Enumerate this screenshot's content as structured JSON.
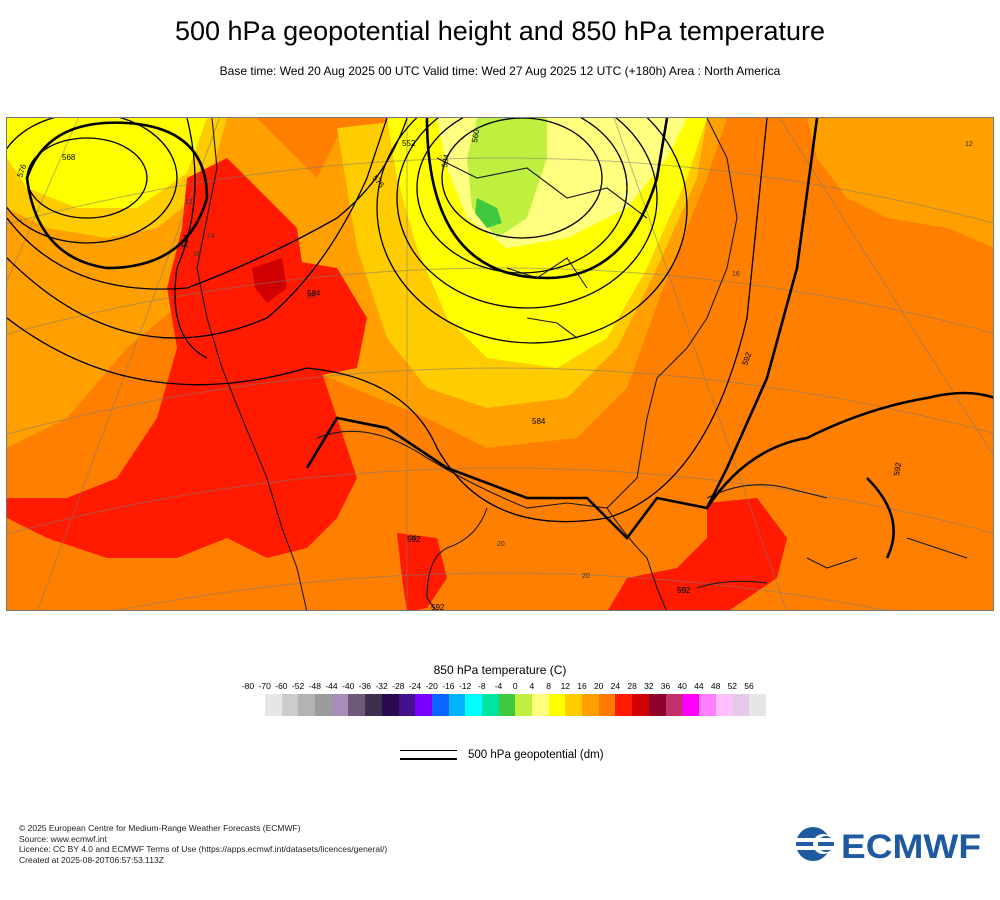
{
  "header": {
    "title": "500 hPa geopotential height and 850 hPa temperature",
    "subtitle": "Base time: Wed 20 Aug 2025 00 UTC Valid time: Wed 27 Aug 2025 12 UTC (+180h) Area : North America"
  },
  "map": {
    "area": "North America",
    "contour_labels": [
      "568",
      "576",
      "584",
      "584",
      "576",
      "584",
      "560",
      "552",
      "584",
      "592",
      "592",
      "592",
      "592",
      "592"
    ],
    "isotherm_labels": [
      "12",
      "12",
      "16",
      "16",
      "24",
      "20",
      "20",
      "20",
      "24",
      "24"
    ]
  },
  "temperature_legend": {
    "title": "850 hPa temperature (C)",
    "ticks": [
      "-80",
      "-70",
      "-60",
      "-52",
      "-48",
      "-44",
      "-40",
      "-36",
      "-32",
      "-28",
      "-24",
      "-20",
      "-16",
      "-12",
      "-8",
      "-4",
      "0",
      "4",
      "8",
      "12",
      "16",
      "20",
      "24",
      "28",
      "32",
      "36",
      "40",
      "44",
      "48",
      "52",
      "56"
    ],
    "colors": [
      "#e6e6e6",
      "#cccccc",
      "#b3b3b3",
      "#9c9c9c",
      "#a78eb8",
      "#6e5a78",
      "#3f2f4f",
      "#2b0a4f",
      "#45108e",
      "#7b00ff",
      "#0a64ff",
      "#00b4ff",
      "#00ffff",
      "#00e4a0",
      "#3fc93f",
      "#bff03f",
      "#ffff80",
      "#ffff00",
      "#ffcc00",
      "#ffa000",
      "#ff7a00",
      "#ff1a00",
      "#d10000",
      "#8c0029",
      "#c2306b",
      "#ff00ff",
      "#ff80ff",
      "#ffc0ff",
      "#e8c8e8",
      "#e6e6e6"
    ]
  },
  "geopotential_legend": {
    "label": "500 hPa geopotential (dm)"
  },
  "footer": {
    "copyright": "© 2025 European Centre for Medium-Range Weather Forecasts (ECMWF)",
    "source": "Source: www.ecmwf.int",
    "licence": "Licence: CC BY 4.0 and ECMWF Terms of Use (https://apps.ecmwf.int/datasets/licences/general/)",
    "created": "Created at 2025-08-20T06:57:53.113Z"
  },
  "logo": {
    "text": "ECMWF",
    "color": "#1e5aa0"
  }
}
